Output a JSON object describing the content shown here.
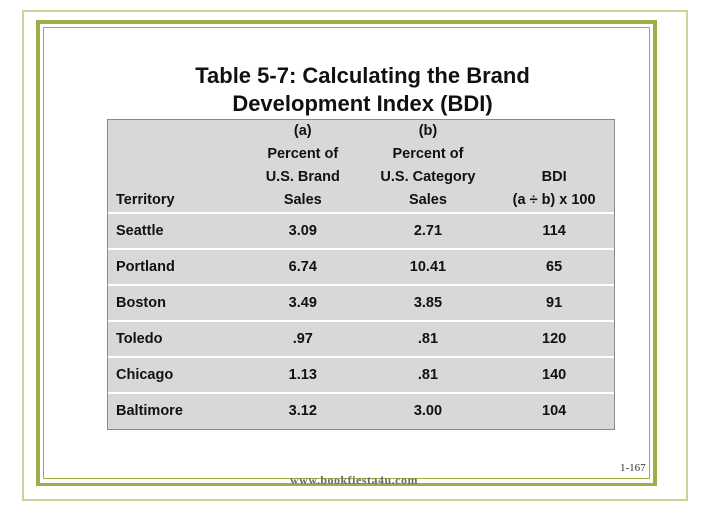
{
  "title": {
    "line1": "Table 5-7: Calculating the Brand",
    "line2": "Development Index (BDI)"
  },
  "table": {
    "headers": {
      "territory": [
        "",
        "",
        "",
        "Territory"
      ],
      "a": [
        "(a)",
        "Percent of",
        "U.S. Brand",
        "Sales"
      ],
      "b": [
        "(b)",
        "Percent of",
        "U.S. Category",
        "Sales"
      ],
      "bdi": [
        "",
        "",
        "BDI",
        "(a ÷ b) x 100"
      ]
    },
    "rows": [
      {
        "territory": "Seattle",
        "a": "3.09",
        "b": "2.71",
        "bdi": "114"
      },
      {
        "territory": "Portland",
        "a": "6.74",
        "b": "10.41",
        "bdi": "65"
      },
      {
        "territory": "Boston",
        "a": "3.49",
        "b": "3.85",
        "bdi": "91"
      },
      {
        "territory": "Toledo",
        "a": ".97",
        "b": ".81",
        "bdi": "120"
      },
      {
        "territory": "Chicago",
        "a": "1.13",
        "b": ".81",
        "bdi": "140"
      },
      {
        "territory": "Baltimore",
        "a": "3.12",
        "b": "3.00",
        "bdi": "104"
      }
    ]
  },
  "page_number": "1-167",
  "footer_url": "www.bookfiesta4u.com",
  "colors": {
    "frame": "#9fae49",
    "table_bg": "#d8d8d8"
  }
}
